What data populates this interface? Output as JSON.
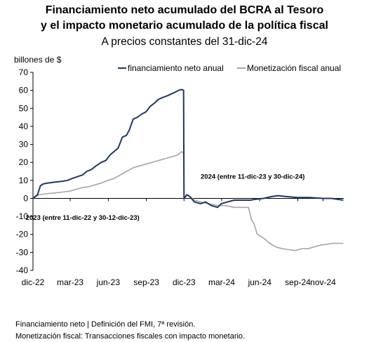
{
  "chart_data": {
    "type": "line",
    "title": "Financiamiento neto acumulado del BCRA al Tesoro",
    "title_line2": "y el impacto monetario acumulado de la política fiscal",
    "subtitle": "A precios constantes del 31-dic-24",
    "ylabel": "billones de $",
    "ylim": [
      -40,
      70
    ],
    "yticks": [
      -40,
      -30,
      -20,
      -10,
      0,
      10,
      20,
      30,
      40,
      50,
      60,
      70
    ],
    "xlim": [
      "2022-12-11",
      "2024-12-31"
    ],
    "xticks": [
      {
        "label": "dic-22",
        "date": "2022-12-11"
      },
      {
        "label": "mar-23",
        "date": "2023-03-11"
      },
      {
        "label": "jun-23",
        "date": "2023-06-11"
      },
      {
        "label": "sep-23",
        "date": "2023-09-11"
      },
      {
        "label": "dic-23",
        "date": "2023-12-11"
      },
      {
        "label": "mar-24",
        "date": "2024-03-11"
      },
      {
        "label": "jun-24",
        "date": "2024-06-11"
      },
      {
        "label": "sep-24",
        "date": "2024-09-11"
      },
      {
        "label": "nov-24",
        "date": "2024-11-11"
      }
    ],
    "grid": false,
    "legend": "top",
    "annotations": [
      {
        "text": "2024 (entre 11-dic-23 y 30-dic-24)",
        "x": "2024-05-25",
        "y": 11
      },
      {
        "text": "2023 (entre 11-dic-22 y 30-12-dic-23)",
        "x": "2023-04-10",
        "y": -12
      }
    ],
    "series": [
      {
        "name": "financiamiento neto anual",
        "color": "#1f3864",
        "points": [
          [
            "2022-12-11",
            0
          ],
          [
            "2022-12-16",
            1
          ],
          [
            "2022-12-22",
            2
          ],
          [
            "2022-12-29",
            7
          ],
          [
            "2023-01-05",
            8
          ],
          [
            "2023-01-15",
            8.5
          ],
          [
            "2023-02-01",
            9
          ],
          [
            "2023-02-20",
            9.5
          ],
          [
            "2023-03-05",
            10
          ],
          [
            "2023-03-15",
            11
          ],
          [
            "2023-03-28",
            12
          ],
          [
            "2023-04-10",
            13
          ],
          [
            "2023-04-20",
            15
          ],
          [
            "2023-05-01",
            16
          ],
          [
            "2023-05-12",
            18
          ],
          [
            "2023-05-25",
            20
          ],
          [
            "2023-06-05",
            21
          ],
          [
            "2023-06-15",
            24
          ],
          [
            "2023-06-25",
            26
          ],
          [
            "2023-07-05",
            28
          ],
          [
            "2023-07-15",
            34
          ],
          [
            "2023-07-25",
            35
          ],
          [
            "2023-08-01",
            38
          ],
          [
            "2023-08-10",
            44
          ],
          [
            "2023-08-20",
            45
          ],
          [
            "2023-09-01",
            47
          ],
          [
            "2023-09-10",
            48
          ],
          [
            "2023-09-20",
            51
          ],
          [
            "2023-10-01",
            53
          ],
          [
            "2023-10-10",
            55
          ],
          [
            "2023-10-20",
            56
          ],
          [
            "2023-11-01",
            57
          ],
          [
            "2023-11-10",
            58
          ],
          [
            "2023-11-20",
            59
          ],
          [
            "2023-11-28",
            60
          ],
          [
            "2023-12-05",
            60.5
          ],
          [
            "2023-12-10",
            60
          ],
          [
            "2023-12-11",
            0
          ],
          [
            "2023-12-18",
            2
          ],
          [
            "2023-12-25",
            1
          ],
          [
            "2024-01-05",
            -2
          ],
          [
            "2024-01-20",
            -3
          ],
          [
            "2024-02-01",
            -2
          ],
          [
            "2024-02-15",
            -4
          ],
          [
            "2024-03-01",
            -5
          ],
          [
            "2024-03-10",
            -3
          ],
          [
            "2024-03-25",
            -2
          ],
          [
            "2024-04-10",
            -1
          ],
          [
            "2024-05-01",
            -1
          ],
          [
            "2024-05-20",
            -1
          ],
          [
            "2024-06-01",
            -0.5
          ],
          [
            "2024-06-20",
            0
          ],
          [
            "2024-07-10",
            1
          ],
          [
            "2024-07-25",
            1.5
          ],
          [
            "2024-08-15",
            1
          ],
          [
            "2024-09-10",
            0.5
          ],
          [
            "2024-10-10",
            0.5
          ],
          [
            "2024-11-10",
            0
          ],
          [
            "2024-12-01",
            0
          ],
          [
            "2024-12-30",
            -1
          ]
        ]
      },
      {
        "name": "Monetización fiscal anual",
        "color": "#a6a6a6",
        "points": [
          [
            "2022-12-11",
            0
          ],
          [
            "2022-12-18",
            1
          ],
          [
            "2022-12-26",
            2
          ],
          [
            "2023-01-10",
            2.5
          ],
          [
            "2023-02-01",
            3
          ],
          [
            "2023-02-20",
            3.5
          ],
          [
            "2023-03-10",
            4
          ],
          [
            "2023-03-25",
            5
          ],
          [
            "2023-04-10",
            6
          ],
          [
            "2023-04-25",
            6.5
          ],
          [
            "2023-05-10",
            7.5
          ],
          [
            "2023-05-25",
            8.5
          ],
          [
            "2023-06-10",
            10
          ],
          [
            "2023-06-25",
            11
          ],
          [
            "2023-07-10",
            13
          ],
          [
            "2023-07-25",
            15
          ],
          [
            "2023-08-10",
            17
          ],
          [
            "2023-08-25",
            18
          ],
          [
            "2023-09-10",
            19
          ],
          [
            "2023-09-25",
            20
          ],
          [
            "2023-10-10",
            21
          ],
          [
            "2023-10-25",
            22
          ],
          [
            "2023-11-10",
            23
          ],
          [
            "2023-11-25",
            24
          ],
          [
            "2023-12-05",
            26
          ],
          [
            "2023-12-10",
            25
          ],
          [
            "2023-12-11",
            0
          ],
          [
            "2023-12-20",
            2
          ],
          [
            "2024-01-05",
            -1
          ],
          [
            "2024-01-20",
            -2
          ],
          [
            "2024-02-10",
            -3
          ],
          [
            "2024-03-01",
            -4
          ],
          [
            "2024-03-20",
            -4
          ],
          [
            "2024-04-10",
            -5
          ],
          [
            "2024-05-01",
            -5
          ],
          [
            "2024-05-15",
            -5
          ],
          [
            "2024-05-22",
            -12
          ],
          [
            "2024-05-28",
            -14
          ],
          [
            "2024-06-05",
            -20
          ],
          [
            "2024-06-20",
            -22
          ],
          [
            "2024-07-05",
            -25
          ],
          [
            "2024-07-20",
            -27
          ],
          [
            "2024-08-05",
            -28
          ],
          [
            "2024-08-20",
            -28.5
          ],
          [
            "2024-09-05",
            -29
          ],
          [
            "2024-09-20",
            -28
          ],
          [
            "2024-10-05",
            -28
          ],
          [
            "2024-10-20",
            -27
          ],
          [
            "2024-11-05",
            -26
          ],
          [
            "2024-11-20",
            -25.5
          ],
          [
            "2024-12-05",
            -25
          ],
          [
            "2024-12-30",
            -25
          ]
        ]
      }
    ]
  },
  "notes": {
    "line1": "Financiamiento neto | Definición del FMI, 7ª revisión.",
    "line2": "Monetización fiscal: Transacciones fiscales con impacto monetario."
  }
}
